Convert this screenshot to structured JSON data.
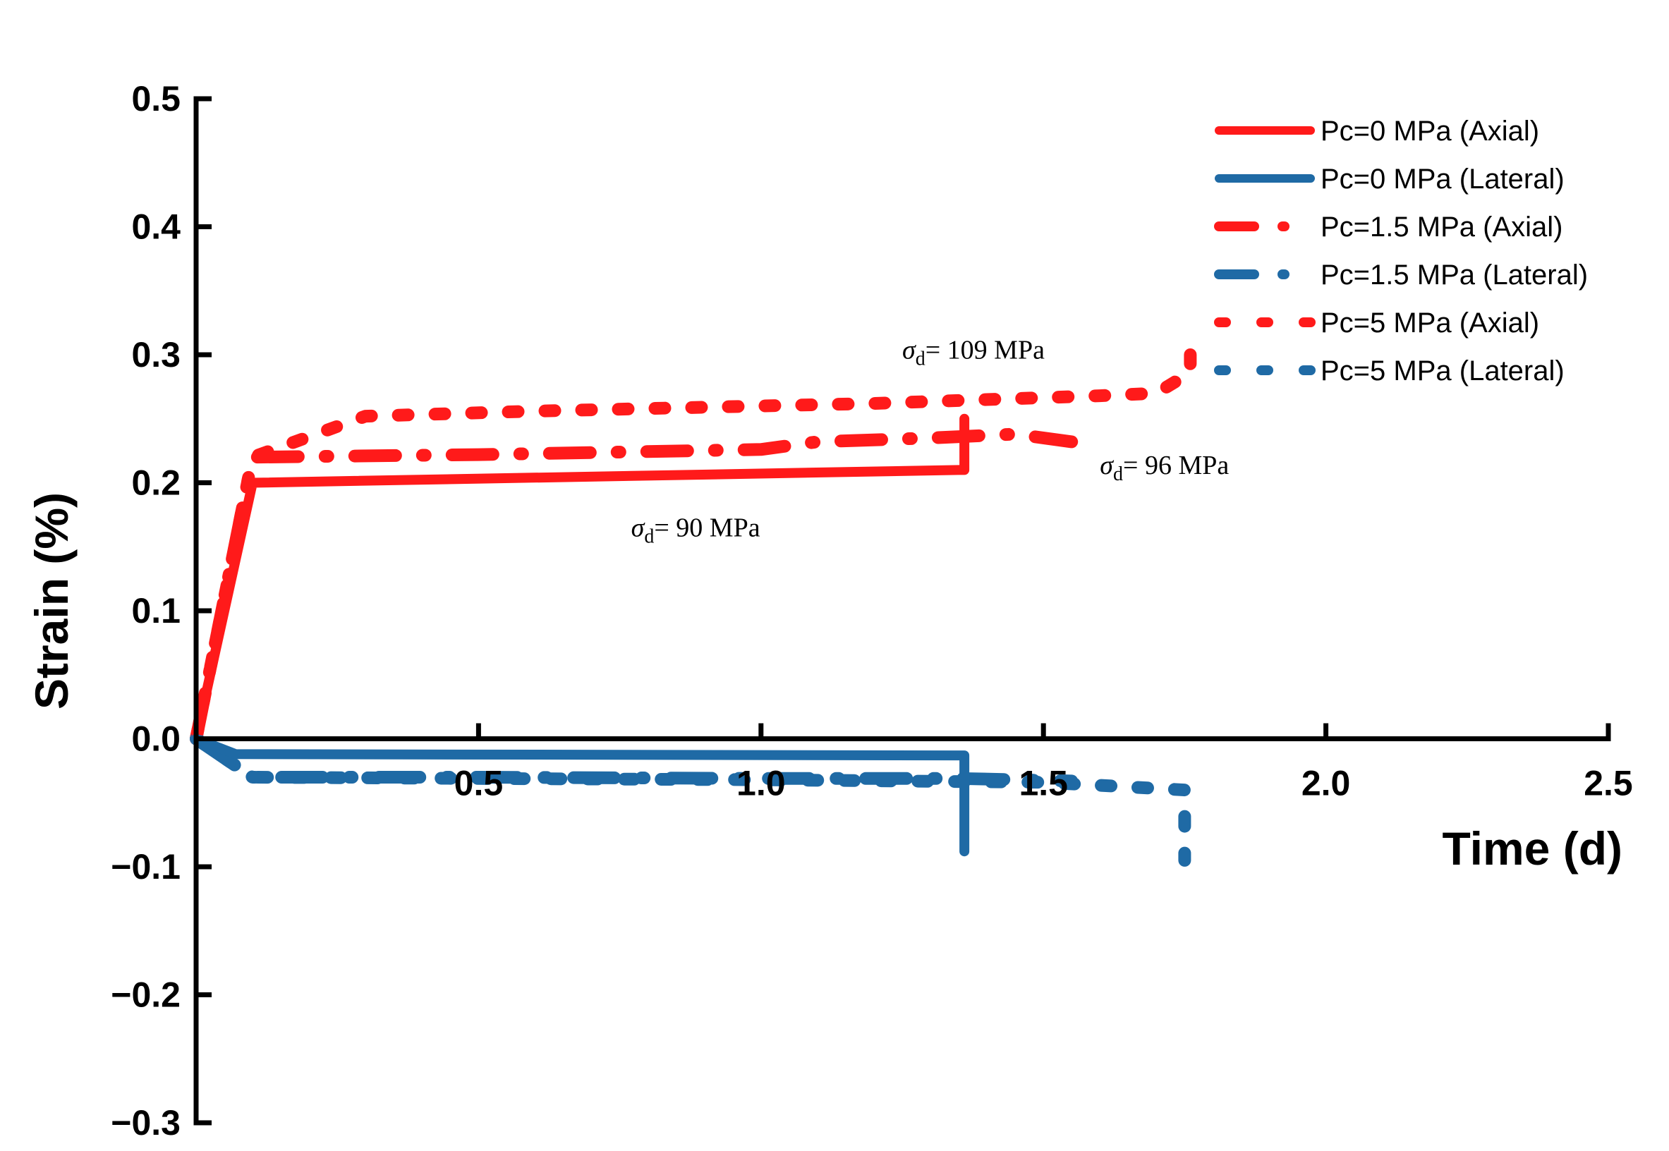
{
  "chart_data": {
    "type": "line",
    "xlabel": "Time (d)",
    "ylabel": "Strain (%)",
    "xlim": [
      0,
      2.5
    ],
    "ylim": [
      -0.3,
      0.5
    ],
    "xticks": [
      "0.5",
      "1.0",
      "1.5",
      "2.0",
      "2.5"
    ],
    "yticks": [
      "0.5",
      "0.4",
      "0.3",
      "0.2",
      "0.1",
      "0.0",
      "−0.1",
      "−0.2",
      "−0.3"
    ],
    "grid": false,
    "legend_position": "top-right",
    "series": [
      {
        "name": "Pc=0 MPa (Axial)",
        "color": "#ff1a1a",
        "style": "solid",
        "x": [
          0,
          0.1,
          1.35,
          1.36,
          1.36
        ],
        "y": [
          0,
          0.2,
          0.21,
          0.21,
          0.25
        ]
      },
      {
        "name": "Pc=0 MPa (Lateral)",
        "color": "#1f6aa5",
        "style": "solid",
        "x": [
          0,
          0.07,
          1.34,
          1.36,
          1.36
        ],
        "y": [
          0,
          -0.012,
          -0.013,
          -0.013,
          -0.088
        ]
      },
      {
        "name": "Pc=1.5 MPa (Axial)",
        "color": "#ff1a1a",
        "style": "dashdot",
        "x": [
          0,
          0.1,
          0.5,
          1.0,
          1.1,
          1.3,
          1.45,
          1.55
        ],
        "y": [
          0,
          0.22,
          0.222,
          0.226,
          0.232,
          0.235,
          0.238,
          0.232
        ]
      },
      {
        "name": "Pc=1.5 MPa (Lateral)",
        "color": "#1f6aa5",
        "style": "dashdot",
        "x": [
          0,
          0.1,
          0.5,
          1.0,
          1.35,
          1.55
        ],
        "y": [
          0,
          -0.03,
          -0.03,
          -0.031,
          -0.031,
          -0.033
        ]
      },
      {
        "name": "Pc=5 MPa (Axial)",
        "color": "#ff1a1a",
        "style": "dotted",
        "x": [
          0,
          0.1,
          0.3,
          0.6,
          0.9,
          1.2,
          1.4,
          1.6,
          1.7,
          1.76,
          1.76
        ],
        "y": [
          0,
          0.22,
          0.252,
          0.256,
          0.259,
          0.262,
          0.265,
          0.268,
          0.27,
          0.286,
          0.3
        ]
      },
      {
        "name": "Pc=5 MPa (Lateral)",
        "color": "#1f6aa5",
        "style": "dotted",
        "x": [
          0,
          0.1,
          0.5,
          1.0,
          1.5,
          1.75,
          1.75
        ],
        "y": [
          0,
          -0.03,
          -0.031,
          -0.032,
          -0.034,
          -0.04,
          -0.095
        ]
      }
    ],
    "annotations": [
      {
        "symbol": "σ",
        "sub": "d",
        "text": "= 90 MPa",
        "x": 0.77,
        "y": 0.158
      },
      {
        "symbol": "σ",
        "sub": "d",
        "text": "= 109 MPa",
        "x": 1.25,
        "y": 0.297
      },
      {
        "symbol": "σ",
        "sub": "d",
        "text": "= 96 MPa",
        "x": 1.6,
        "y": 0.207
      }
    ]
  }
}
